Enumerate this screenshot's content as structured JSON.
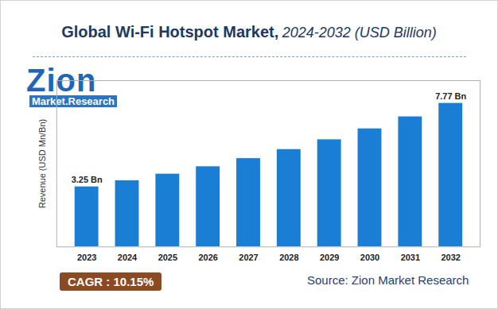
{
  "chart_data": {
    "type": "bar",
    "title": "Global Wi-Fi Hotspot Market,",
    "subtitle": "2024-2032 (USD Billion)",
    "y_label": "Revenue (USD Mn/Bn)",
    "categories": [
      "2023",
      "2024",
      "2025",
      "2026",
      "2027",
      "2028",
      "2029",
      "2030",
      "2031",
      "2032"
    ],
    "values": [
      3.25,
      3.58,
      3.94,
      4.34,
      4.78,
      5.27,
      5.8,
      6.39,
      7.04,
      7.77
    ],
    "value_labels": [
      "3.25 Bn",
      null,
      null,
      null,
      null,
      null,
      null,
      null,
      null,
      "7.77 Bn"
    ],
    "data_labels": true,
    "color": "#1a7fd4",
    "ylim": [
      0,
      9
    ],
    "tick_labels": "x",
    "grid": false,
    "annotations": [
      "Zion",
      "Market.Research",
      "CAGR : 10.15%",
      "Source: Zion Market Research"
    ]
  }
}
